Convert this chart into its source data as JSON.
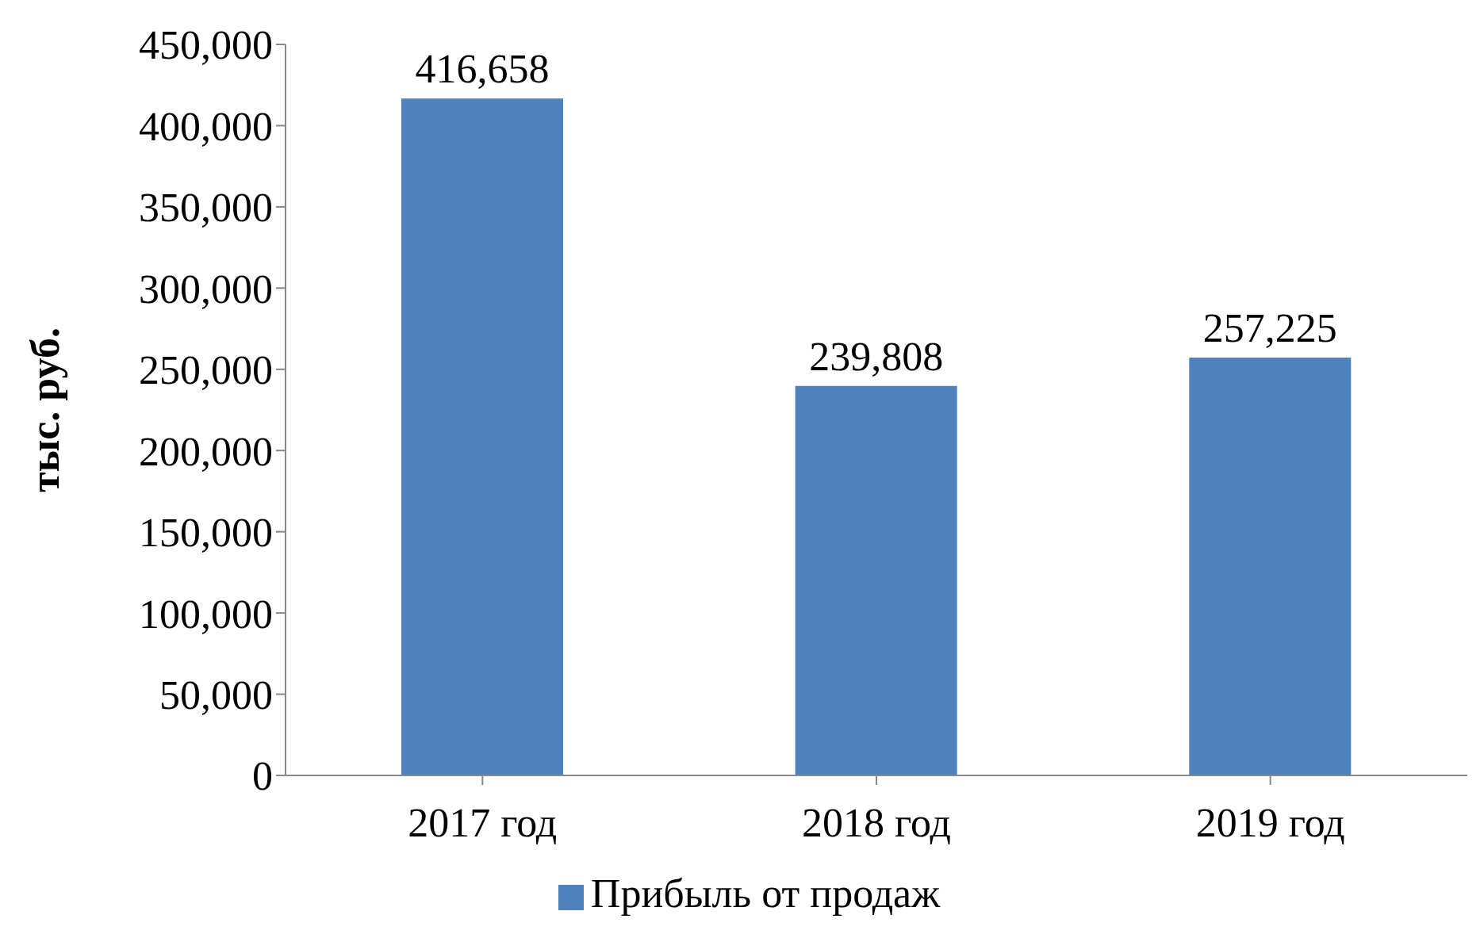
{
  "chart_data": {
    "type": "bar",
    "ylabel": "тыс. руб.",
    "categories": [
      "2017 год",
      "2018 год",
      "2019 год"
    ],
    "series": [
      {
        "name": "Прибыль от продаж",
        "color": "#4f81bd",
        "values": [
          416658,
          239808,
          257225
        ],
        "value_labels": [
          "416,658",
          "239,808",
          "257,225"
        ]
      }
    ],
    "ylim": [
      0,
      450000
    ],
    "yticks": [
      {
        "value": 0,
        "label": "0"
      },
      {
        "value": 50000,
        "label": "50,000"
      },
      {
        "value": 100000,
        "label": "100,000"
      },
      {
        "value": 150000,
        "label": "150,000"
      },
      {
        "value": 200000,
        "label": "200,000"
      },
      {
        "value": 250000,
        "label": "250,000"
      },
      {
        "value": 300000,
        "label": "300,000"
      },
      {
        "value": 350000,
        "label": "350,000"
      },
      {
        "value": 400000,
        "label": "400,000"
      },
      {
        "value": 450000,
        "label": "450,000"
      }
    ],
    "grid": false,
    "legend": "bottom"
  }
}
